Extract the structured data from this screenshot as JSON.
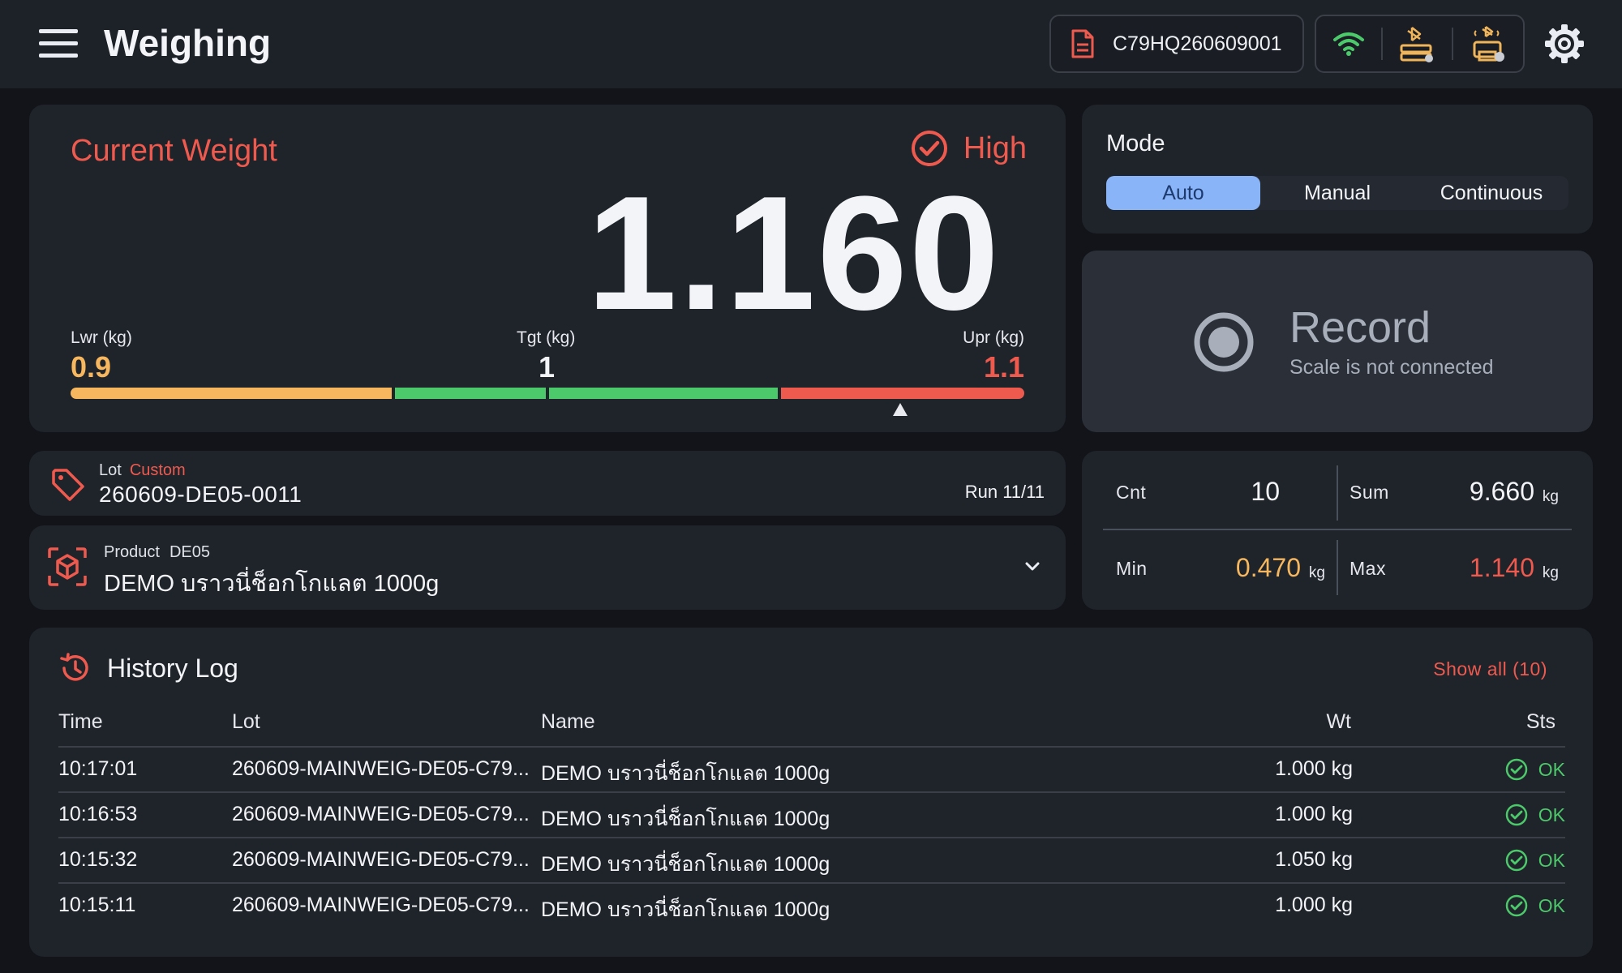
{
  "header": {
    "title": "Weighing",
    "document_id": "C79HQ260609001",
    "colors": {
      "accent": "#ef5a4f",
      "wifi": "#4cc96a",
      "device": "#f0b45a"
    }
  },
  "current_weight": {
    "title": "Current Weight",
    "status": "High",
    "value": "1.160",
    "lower_label": "Lwr (kg)",
    "lower_value": "0.9",
    "target_label": "Tgt (kg)",
    "target_value": "1",
    "upper_label": "Upr (kg)",
    "upper_value": "1.1"
  },
  "mode": {
    "title": "Mode",
    "options": [
      "Auto",
      "Manual",
      "Continuous"
    ],
    "selected": "Auto"
  },
  "record": {
    "title": "Record",
    "subtitle": "Scale is not connected"
  },
  "lot": {
    "label": "Lot",
    "tag": "Custom",
    "value": "260609-DE05-0011",
    "run": "Run 11/11"
  },
  "product": {
    "label": "Product",
    "code": "DE05",
    "name": "DEMO บราวนี่ช็อกโกแลต 1000g"
  },
  "stats": {
    "cnt_label": "Cnt",
    "cnt_value": "10",
    "sum_label": "Sum",
    "sum_value": "9.660",
    "sum_unit": "kg",
    "min_label": "Min",
    "min_value": "0.470",
    "min_unit": "kg",
    "max_label": "Max",
    "max_value": "1.140",
    "max_unit": "kg"
  },
  "history": {
    "title": "History Log",
    "show_all": "Show all (10)",
    "columns": {
      "time": "Time",
      "lot": "Lot",
      "name": "Name",
      "wt": "Wt",
      "sts": "Sts"
    },
    "rows": [
      {
        "time": "10:17:01",
        "lot": "260609-MAINWEIG-DE05-C79...",
        "name": "DEMO บราวนี่ช็อกโกแลต 1000g",
        "wt": "1.000 kg",
        "sts": "OK"
      },
      {
        "time": "10:16:53",
        "lot": "260609-MAINWEIG-DE05-C79...",
        "name": "DEMO บราวนี่ช็อกโกแลต 1000g",
        "wt": "1.000 kg",
        "sts": "OK"
      },
      {
        "time": "10:15:32",
        "lot": "260609-MAINWEIG-DE05-C79...",
        "name": "DEMO บราวนี่ช็อกโกแลต 1000g",
        "wt": "1.050 kg",
        "sts": "OK"
      },
      {
        "time": "10:15:11",
        "lot": "260609-MAINWEIG-DE05-C79...",
        "name": "DEMO บราวนี่ช็อกโกแลต 1000g",
        "wt": "1.000 kg",
        "sts": "OK"
      }
    ]
  }
}
